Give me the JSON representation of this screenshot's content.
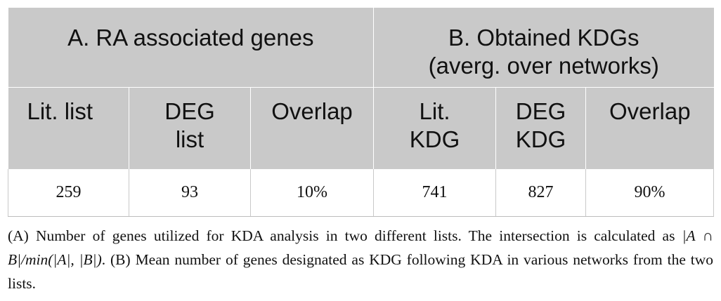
{
  "table": {
    "group_headers": [
      {
        "line1": "A. RA associated genes",
        "line2": ""
      },
      {
        "line1": "B. Obtained KDGs",
        "line2": "(averg. over networks)"
      }
    ],
    "sub_headers": [
      {
        "line1": "Lit. list",
        "line2": ""
      },
      {
        "line1": "DEG",
        "line2": "list"
      },
      {
        "line1": "Overlap",
        "line2": ""
      },
      {
        "line1": "Lit.",
        "line2": "KDG"
      },
      {
        "line1": "DEG",
        "line2": "KDG"
      },
      {
        "line1": "Overlap",
        "line2": ""
      }
    ],
    "rows": [
      [
        "259",
        "93",
        "10%",
        "741",
        "827",
        "90%"
      ]
    ]
  },
  "caption": {
    "part1": "(A) Number of genes utilized for KDA analysis in two different lists. The intersection is calculated as ",
    "formula": "|A ∩ B|/min(|A|, |B|)",
    "part2": ". (B) Mean number of genes designated as KDG following KDA in various networks from the two lists."
  }
}
